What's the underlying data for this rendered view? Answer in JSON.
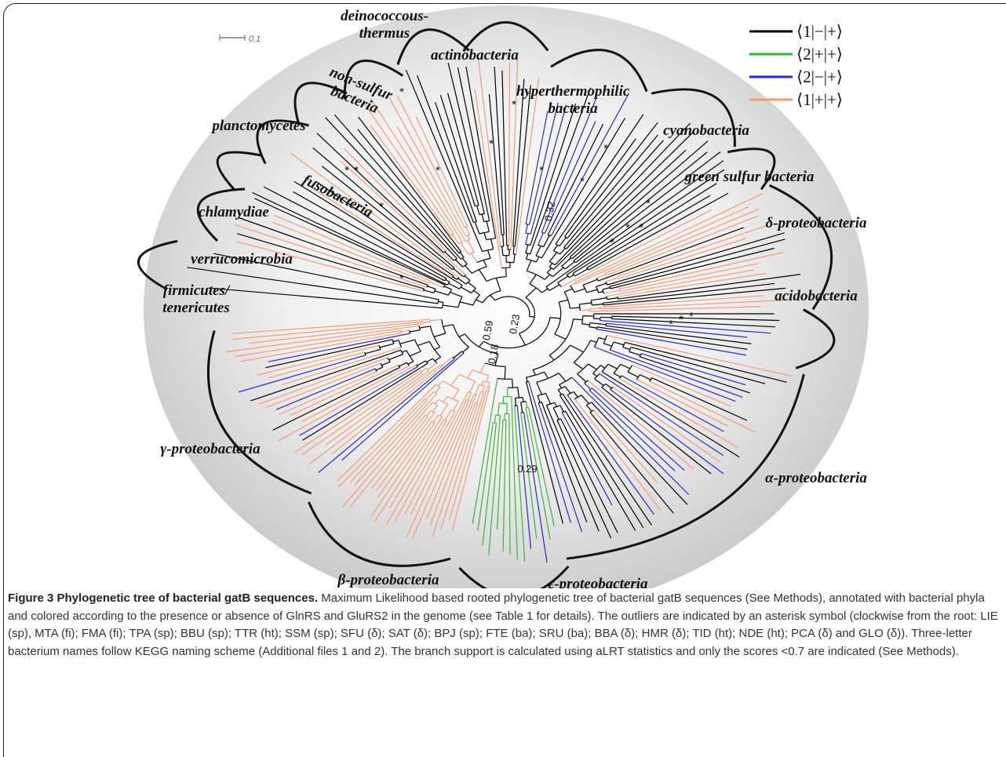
{
  "figure": {
    "scale_label": "0.1",
    "legend": [
      {
        "label": "⟨1|−|+⟩",
        "color": "#000000"
      },
      {
        "label": "⟨2|+|+⟩",
        "color": "#33b833"
      },
      {
        "label": "⟨2|−|+⟩",
        "color": "#2626d4"
      },
      {
        "label": "⟨1|+|+⟩",
        "color": "#f39a72"
      }
    ],
    "clades": [
      {
        "lines": [
          "deinococcous-",
          "thermus"
        ]
      },
      {
        "lines": [
          "actinobacteria"
        ]
      },
      {
        "lines": [
          "hyperthermophilic",
          "bacteria"
        ]
      },
      {
        "lines": [
          "non-sulfur",
          "bacteria"
        ]
      },
      {
        "lines": [
          "planctomycetes"
        ]
      },
      {
        "lines": [
          "cyanobacteria"
        ]
      },
      {
        "lines": [
          "green sulfur bacteria"
        ]
      },
      {
        "lines": [
          "fusobacteria"
        ]
      },
      {
        "lines": [
          "chlamydiae"
        ]
      },
      {
        "lines": [
          "δ-proteobacteria"
        ]
      },
      {
        "lines": [
          "verrucomicrobia"
        ]
      },
      {
        "lines": [
          "firmicutes/",
          "tenericutes"
        ]
      },
      {
        "lines": [
          "acidobacteria"
        ]
      },
      {
        "lines": [
          "γ-proteobacteria"
        ]
      },
      {
        "lines": [
          "α-proteobacteria"
        ]
      },
      {
        "lines": [
          "β-proteobacteria"
        ]
      },
      {
        "lines": [
          "ε-proteobacteria"
        ]
      }
    ],
    "support_values": [
      0.32,
      0.59,
      0.23,
      0.18,
      0.29
    ],
    "outlier_marker": "*",
    "caption": {
      "title": "Figure 3 Phylogenetic tree of bacterial gatB sequences.",
      "text": "Maximum Likelihood based rooted phylogenetic tree of bacterial gatB sequences (See Methods), annotated with bacterial phyla and colored according to the presence or absence of GlnRS and GluRS2 in the genome (see Table 1 for details). The outliers are indicated by an asterisk symbol (clockwise from the root: LIE (sp), MTA (fi); FMA (fi); TPA (sp); BBU (sp); TTR (ht); SSM (sp); SFU (δ); SAT (δ); BPJ (sp); FTE (ba); SRU (ba); BBA (δ); HMR (δ); TID (ht); NDE (ht); PCA (δ) and GLO (δ)). Three-letter bacterium names follow KEGG naming scheme (Additional files 1 and 2). The branch support is calculated using aLRT statistics and only the scores <0.7 are indicated (See Methods)."
    }
  }
}
